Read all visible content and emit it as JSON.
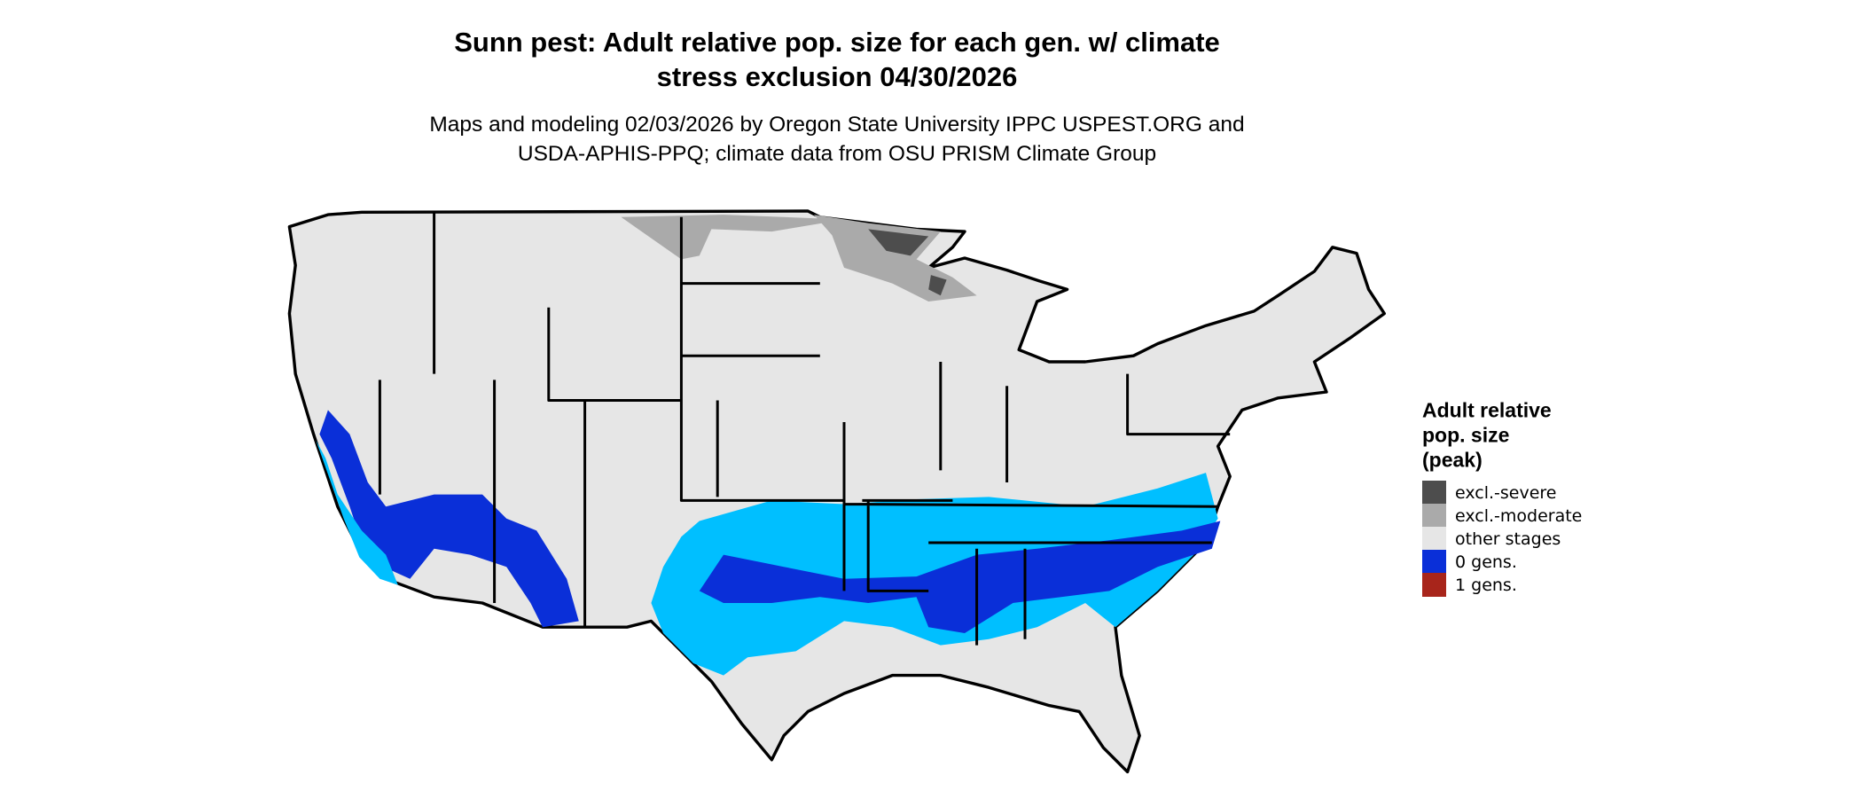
{
  "header": {
    "title": [
      "Sunn pest: Adult relative pop. size for each gen. w/ climate",
      "stress exclusion 04/30/2026"
    ],
    "subtitle": [
      "Maps and modeling 02/03/2026 by Oregon State University IPPC USPEST.ORG and",
      "USDA-APHIS-PPQ; climate data from OSU PRISM Climate Group"
    ]
  },
  "legend": {
    "title": [
      "Adult relative",
      "pop. size",
      "(peak)"
    ],
    "items": [
      {
        "label": "excl.-severe",
        "color": "#4d4d4d"
      },
      {
        "label": "excl.-moderate",
        "color": "#aaaaaa"
      },
      {
        "label": "other stages",
        "color": "#e6e6e6"
      },
      {
        "label": "0 gens.",
        "color": "#0a2fd8"
      },
      {
        "label": "1 gens.",
        "color": "#a8251b"
      }
    ]
  }
}
